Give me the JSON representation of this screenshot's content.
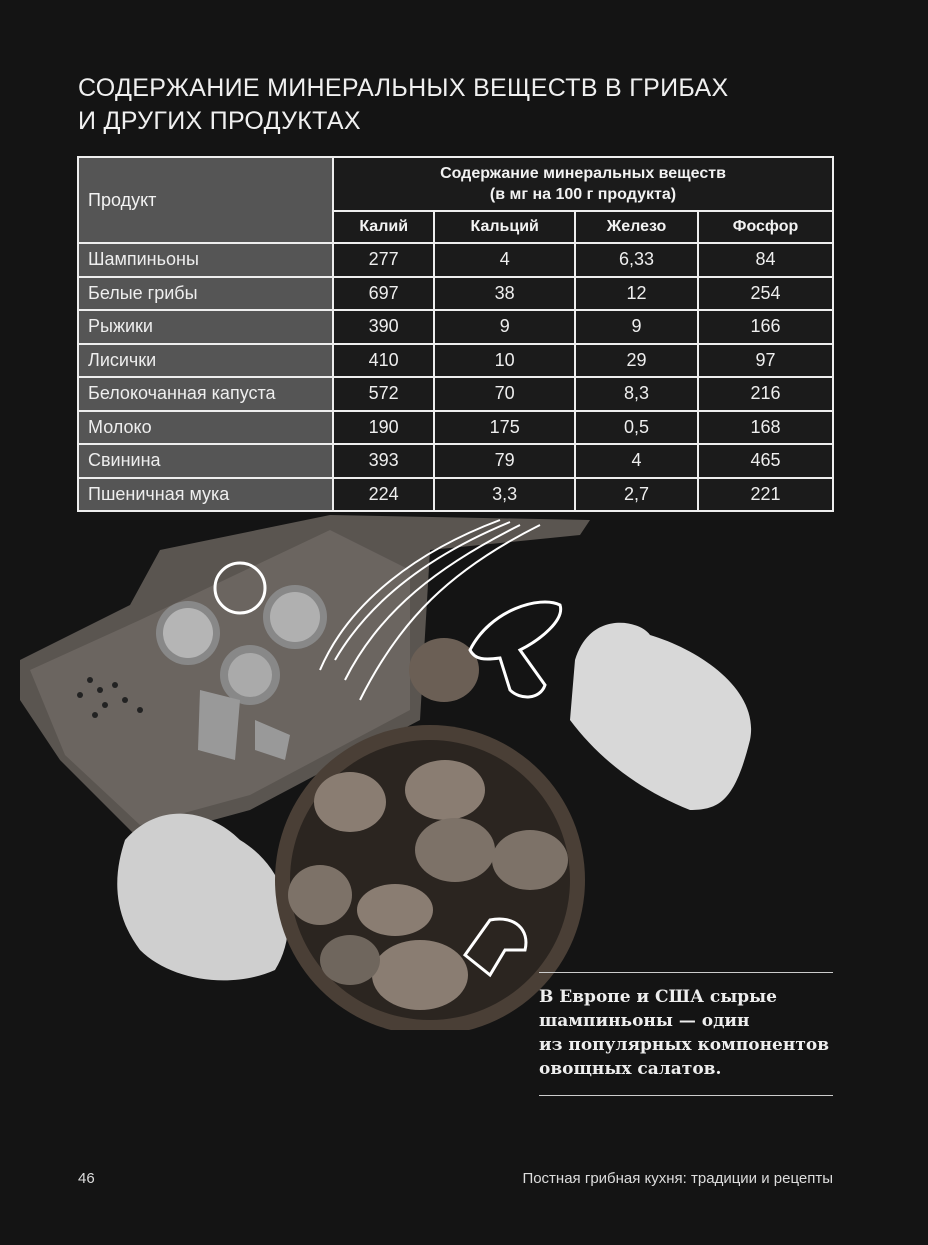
{
  "title": {
    "line1": "СОДЕРЖАНИЕ МИНЕРАЛЬНЫХ ВЕЩЕСТВ В ГРИБАХ",
    "line2": "И ДРУГИХ ПРОДУКТАХ"
  },
  "table": {
    "product_header": "Продукт",
    "group_header_line1": "Содержание минеральных веществ",
    "group_header_line2": "(в мг на 100 г продукта)",
    "columns": [
      "Калий",
      "Кальций",
      "Железо",
      "Фосфор"
    ],
    "rows": [
      {
        "product": "Шампиньоны",
        "values": [
          "277",
          "4",
          "6,33",
          "84"
        ]
      },
      {
        "product": "Белые грибы",
        "values": [
          "697",
          "38",
          "12",
          "254"
        ]
      },
      {
        "product": "Рыжики",
        "values": [
          "390",
          "9",
          "9",
          "166"
        ]
      },
      {
        "product": "Лисички",
        "values": [
          "410",
          "10",
          "29",
          "97"
        ]
      },
      {
        "product": "Белокочанная капуста",
        "values": [
          "572",
          "70",
          "8,3",
          "216"
        ]
      },
      {
        "product": "Молоко",
        "values": [
          "190",
          "175",
          "0,5",
          "168"
        ]
      },
      {
        "product": "Свинина",
        "values": [
          "393",
          "79",
          "4",
          "465"
        ]
      },
      {
        "product": "Пшеничная мука",
        "values": [
          "224",
          "3,3",
          "2,7",
          "221"
        ]
      }
    ]
  },
  "note": {
    "lines": [
      "В Европе и США сырые",
      "шампиньоны — один",
      "из популярных компонентов",
      "овощных салатов."
    ]
  },
  "footer": {
    "page_number": "46",
    "running_head": "Постная грибная кухня: традиции и рецепты"
  }
}
